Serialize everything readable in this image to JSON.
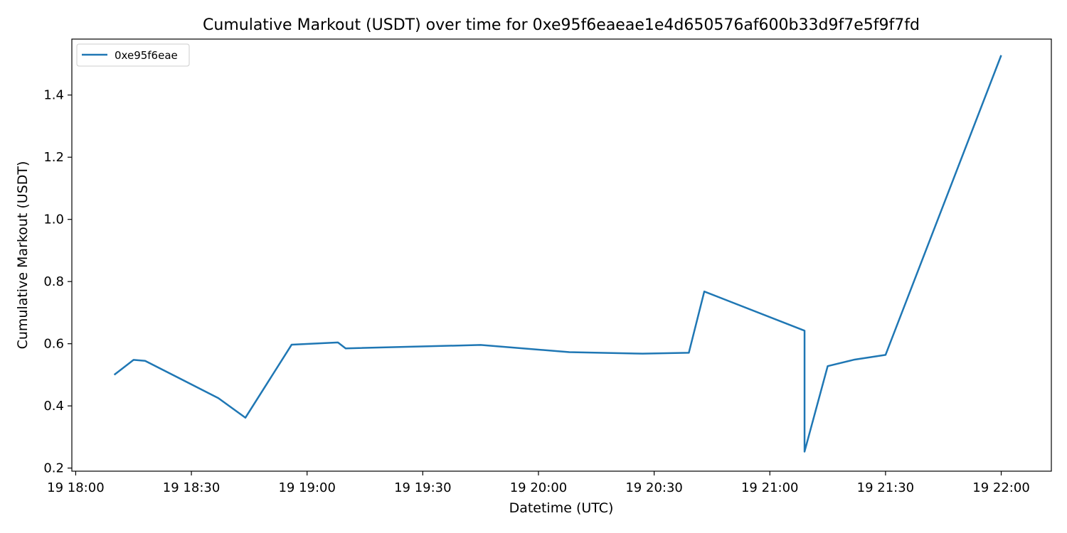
{
  "chart_data": {
    "type": "line",
    "title": "Cumulative Markout (USDT) over time for 0xe95f6eaeae1e4d650576af600b33d9f7e5f9f7fd",
    "xlabel": "Datetime (UTC)",
    "ylabel": "Cumulative Markout (USDT)",
    "x_ticks": [
      {
        "x": "19 18:00",
        "label": "19 18:00"
      },
      {
        "x": "19 18:30",
        "label": "19 18:30"
      },
      {
        "x": "19 19:00",
        "label": "19 19:00"
      },
      {
        "x": "19 19:30",
        "label": "19 19:30"
      },
      {
        "x": "19 20:00",
        "label": "19 20:00"
      },
      {
        "x": "19 20:30",
        "label": "19 20:30"
      },
      {
        "x": "19 21:00",
        "label": "19 21:00"
      },
      {
        "x": "19 21:30",
        "label": "19 21:30"
      },
      {
        "x": "19 22:00",
        "label": "19 22:00"
      }
    ],
    "y_ticks": [
      0.2,
      0.4,
      0.6,
      0.8,
      1.0,
      1.2,
      1.4
    ],
    "y_tick_labels": [
      "0.2",
      "0.4",
      "0.6",
      "0.8",
      "1.0",
      "1.2",
      "1.4"
    ],
    "xlim": [
      "19 17:59",
      "19 22:13"
    ],
    "ylim": [
      0.19,
      1.58
    ],
    "grid": false,
    "legend_position": "top-left",
    "series": [
      {
        "name": "0xe95f6eae",
        "color": "#1f77b4",
        "points": [
          {
            "x": "19 18:10",
            "y": 0.5
          },
          {
            "x": "19 18:15",
            "y": 0.548
          },
          {
            "x": "19 18:18",
            "y": 0.545
          },
          {
            "x": "19 18:37",
            "y": 0.425
          },
          {
            "x": "19 18:44",
            "y": 0.362
          },
          {
            "x": "19 18:56",
            "y": 0.597
          },
          {
            "x": "19 19:08",
            "y": 0.604
          },
          {
            "x": "19 19:10",
            "y": 0.585
          },
          {
            "x": "19 19:45",
            "y": 0.596
          },
          {
            "x": "19 20:08",
            "y": 0.573
          },
          {
            "x": "19 20:27",
            "y": 0.568
          },
          {
            "x": "19 20:39",
            "y": 0.571
          },
          {
            "x": "19 20:43",
            "y": 0.768
          },
          {
            "x": "19 21:09",
            "y": 0.642
          },
          {
            "x": "19 21:09",
            "y": 0.253
          },
          {
            "x": "19 21:15",
            "y": 0.528
          },
          {
            "x": "19 21:22",
            "y": 0.549
          },
          {
            "x": "19 21:30",
            "y": 0.564
          },
          {
            "x": "19 22:00",
            "y": 1.528
          }
        ]
      }
    ]
  }
}
